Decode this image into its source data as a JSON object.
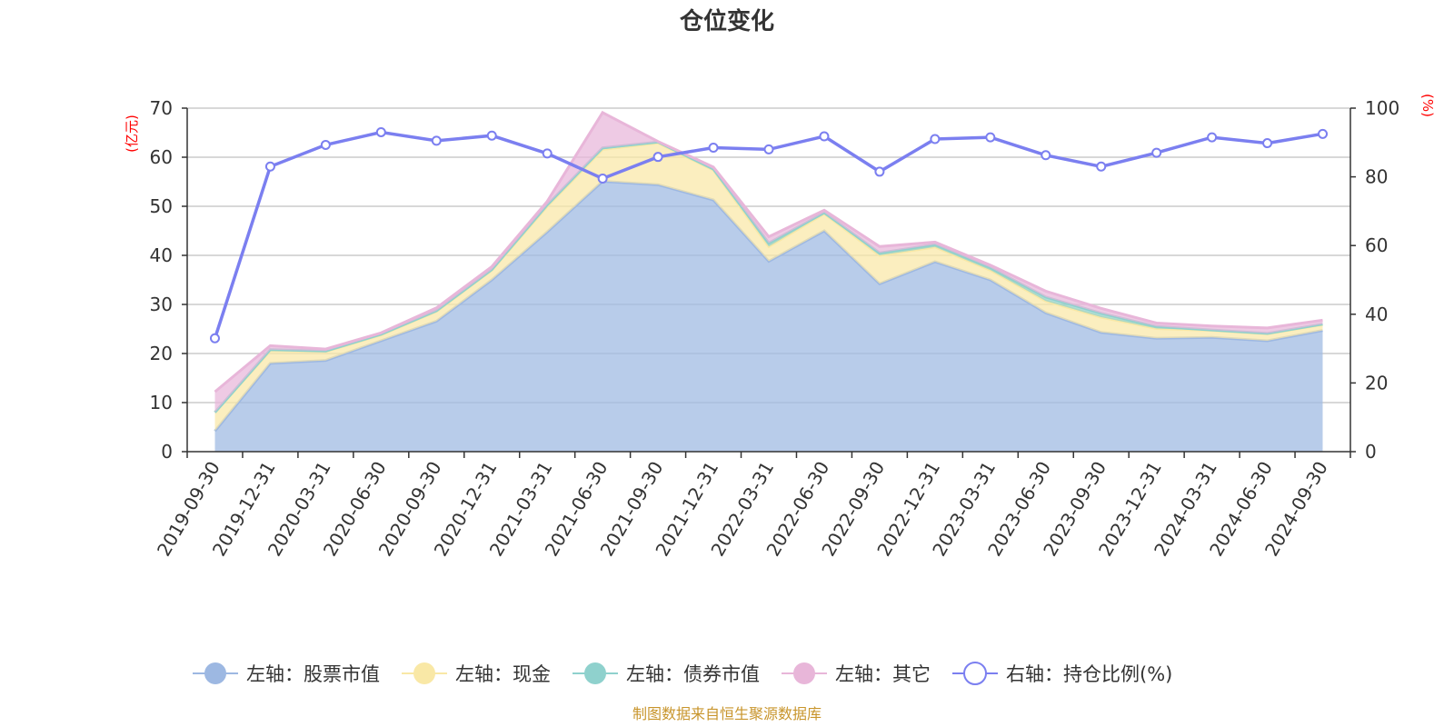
{
  "chart_data": {
    "type": "area",
    "title": "仓位变化",
    "categories": [
      "2019-09-30",
      "2019-12-31",
      "2020-03-31",
      "2020-06-30",
      "2020-09-30",
      "2020-12-31",
      "2021-03-31",
      "2021-06-30",
      "2021-09-30",
      "2021-12-31",
      "2022-03-31",
      "2022-06-30",
      "2022-09-30",
      "2022-12-31",
      "2023-03-31",
      "2023-06-30",
      "2023-09-30",
      "2023-12-31",
      "2024-03-31",
      "2024-06-30",
      "2024-09-30"
    ],
    "left_axis": {
      "unit": "(亿元)",
      "min": 0,
      "max": 70,
      "interval": 10
    },
    "right_axis": {
      "unit": "(%)",
      "min": 0,
      "max": 100,
      "interval": 20
    },
    "stacked": true,
    "series": [
      {
        "name": "左轴：股票市值",
        "axis": "left",
        "color": "#9db8e2",
        "values": [
          4.2,
          18.0,
          18.6,
          22.6,
          26.6,
          35.0,
          44.8,
          55.1,
          54.4,
          51.3,
          38.8,
          45.0,
          34.2,
          38.7,
          35.0,
          28.3,
          24.3,
          23.1,
          23.3,
          22.6,
          24.7
        ]
      },
      {
        "name": "左轴：现金",
        "axis": "left",
        "color": "#f9e8a6",
        "values": [
          3.8,
          2.6,
          1.8,
          1.2,
          2.0,
          2.0,
          5.2,
          6.5,
          8.5,
          6.1,
          3.0,
          3.5,
          5.8,
          3.0,
          2.0,
          2.4,
          3.1,
          2.0,
          1.4,
          1.4,
          1.2
        ]
      },
      {
        "name": "左轴：债券市值",
        "axis": "left",
        "color": "#8fd1cd",
        "values": [
          0,
          0.2,
          0.1,
          0.1,
          0.1,
          0.1,
          0.3,
          0.3,
          0.2,
          0.2,
          0.7,
          0.2,
          0.5,
          0.5,
          0.5,
          0.8,
          0.8,
          0.4,
          0.1,
          0.1,
          0.1
        ]
      },
      {
        "name": "左轴：其它",
        "axis": "left",
        "color": "#e8b6d9",
        "values": [
          4.2,
          0.8,
          0.4,
          0.3,
          0.6,
          0.6,
          0.7,
          7.2,
          0.1,
          0.4,
          1.3,
          0.5,
          1.3,
          0.5,
          0.5,
          1.2,
          1.0,
          0.7,
          0.8,
          1.1,
          0.8
        ]
      },
      {
        "name": "右轴：持仓比例(%)",
        "axis": "right",
        "type": "line",
        "color": "#7b7ff0",
        "values": [
          33.0,
          83.0,
          89.3,
          93.0,
          90.5,
          92.0,
          86.8,
          79.5,
          85.8,
          88.5,
          88.0,
          91.8,
          81.5,
          91.0,
          91.5,
          86.3,
          83.0,
          87.0,
          91.5,
          89.8,
          92.5
        ]
      }
    ],
    "grid": true,
    "legend": "bottom",
    "source": "制图数据来自恒生聚源数据库"
  }
}
